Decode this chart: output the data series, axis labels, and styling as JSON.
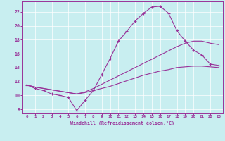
{
  "xlabel": "Windchill (Refroidissement éolien,°C)",
  "background_color": "#c8eef0",
  "line_color": "#993399",
  "x_main": [
    0,
    1,
    2,
    3,
    4,
    5,
    6,
    7,
    8,
    9,
    10,
    11,
    12,
    13,
    14,
    15,
    16,
    17,
    18,
    19,
    20,
    21,
    22,
    23
  ],
  "y_main": [
    11.5,
    11.0,
    10.7,
    10.2,
    10.0,
    9.7,
    7.8,
    9.3,
    10.7,
    13.0,
    15.3,
    17.8,
    19.2,
    20.7,
    21.8,
    22.7,
    22.8,
    21.8,
    19.3,
    17.8,
    16.5,
    15.8,
    14.5,
    14.3
  ],
  "y_line1": [
    11.5,
    11.2,
    11.0,
    10.8,
    10.6,
    10.4,
    10.2,
    10.5,
    11.0,
    11.6,
    12.2,
    12.8,
    13.4,
    14.0,
    14.6,
    15.2,
    15.8,
    16.4,
    17.0,
    17.5,
    17.8,
    17.8,
    17.5,
    17.3
  ],
  "y_line2": [
    11.5,
    11.2,
    11.0,
    10.8,
    10.6,
    10.4,
    10.2,
    10.4,
    10.7,
    11.0,
    11.3,
    11.7,
    12.1,
    12.5,
    12.9,
    13.2,
    13.5,
    13.7,
    14.0,
    14.1,
    14.2,
    14.2,
    14.1,
    14.0
  ],
  "ylim": [
    7.5,
    23.5
  ],
  "xlim": [
    -0.5,
    23.5
  ],
  "yticks": [
    8,
    10,
    12,
    14,
    16,
    18,
    20,
    22
  ],
  "xticks": [
    0,
    1,
    2,
    3,
    4,
    5,
    6,
    7,
    8,
    9,
    10,
    11,
    12,
    13,
    14,
    15,
    16,
    17,
    18,
    19,
    20,
    21,
    22,
    23
  ]
}
